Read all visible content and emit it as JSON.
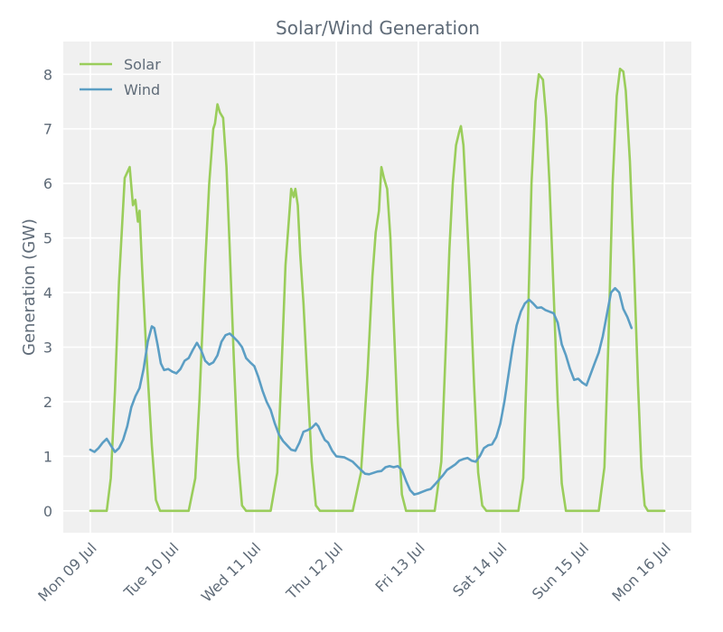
{
  "chart_data": {
    "type": "line",
    "title": "Solar/Wind Generation",
    "xlabel": "",
    "ylabel": "Generation (GW)",
    "ylim": [
      -0.4,
      8.6
    ],
    "yticks": [
      0,
      1,
      2,
      3,
      4,
      5,
      6,
      7,
      8
    ],
    "xlim": [
      -0.33,
      7.33
    ],
    "xticks": [
      0,
      1,
      2,
      3,
      4,
      5,
      6,
      7
    ],
    "xtick_labels": [
      "Mon 09 Jul",
      "Tue 10 Jul",
      "Wed 11 Jul",
      "Thu 12 Jul",
      "Fri 13 Jul",
      "Sat 14 Jul",
      "Sun 15 Jul",
      "Mon 16 Jul"
    ],
    "grid": true,
    "legend": "top-left",
    "x_units": "days since Mon 09 Jul 00:00",
    "series": [
      {
        "name": "Solar",
        "color": "#9acd5b",
        "points": [
          [
            0.0,
            0
          ],
          [
            0.1,
            0
          ],
          [
            0.2,
            0
          ],
          [
            0.25,
            0.6
          ],
          [
            0.3,
            2.2
          ],
          [
            0.35,
            4.2
          ],
          [
            0.42,
            6.1
          ],
          [
            0.48,
            6.3
          ],
          [
            0.52,
            5.6
          ],
          [
            0.55,
            5.7
          ],
          [
            0.58,
            5.3
          ],
          [
            0.6,
            5.5
          ],
          [
            0.63,
            4.5
          ],
          [
            0.68,
            3.0
          ],
          [
            0.75,
            1.2
          ],
          [
            0.8,
            0.2
          ],
          [
            0.85,
            0
          ],
          [
            1.0,
            0
          ],
          [
            1.2,
            0
          ],
          [
            1.28,
            0.6
          ],
          [
            1.33,
            2.0
          ],
          [
            1.4,
            4.5
          ],
          [
            1.45,
            6.0
          ],
          [
            1.5,
            7.0
          ],
          [
            1.52,
            7.1
          ],
          [
            1.55,
            7.45
          ],
          [
            1.58,
            7.3
          ],
          [
            1.62,
            7.2
          ],
          [
            1.66,
            6.3
          ],
          [
            1.7,
            4.8
          ],
          [
            1.75,
            2.8
          ],
          [
            1.8,
            1.0
          ],
          [
            1.85,
            0.1
          ],
          [
            1.9,
            0
          ],
          [
            2.0,
            0
          ],
          [
            2.2,
            0
          ],
          [
            2.28,
            0.7
          ],
          [
            2.33,
            2.5
          ],
          [
            2.38,
            4.5
          ],
          [
            2.42,
            5.3
          ],
          [
            2.45,
            5.9
          ],
          [
            2.48,
            5.75
          ],
          [
            2.5,
            5.9
          ],
          [
            2.53,
            5.6
          ],
          [
            2.56,
            4.7
          ],
          [
            2.6,
            3.8
          ],
          [
            2.65,
            2.3
          ],
          [
            2.7,
            0.9
          ],
          [
            2.75,
            0.1
          ],
          [
            2.8,
            0
          ],
          [
            3.0,
            0
          ],
          [
            3.2,
            0
          ],
          [
            3.3,
            0.7
          ],
          [
            3.38,
            2.5
          ],
          [
            3.44,
            4.3
          ],
          [
            3.48,
            5.1
          ],
          [
            3.52,
            5.5
          ],
          [
            3.55,
            6.3
          ],
          [
            3.58,
            6.1
          ],
          [
            3.62,
            5.9
          ],
          [
            3.66,
            5.0
          ],
          [
            3.7,
            3.5
          ],
          [
            3.75,
            1.6
          ],
          [
            3.8,
            0.3
          ],
          [
            3.85,
            0
          ],
          [
            4.0,
            0
          ],
          [
            4.2,
            0
          ],
          [
            4.28,
            0.9
          ],
          [
            4.33,
            2.8
          ],
          [
            4.38,
            4.8
          ],
          [
            4.42,
            6.0
          ],
          [
            4.46,
            6.7
          ],
          [
            4.5,
            6.95
          ],
          [
            4.52,
            7.05
          ],
          [
            4.55,
            6.7
          ],
          [
            4.58,
            5.8
          ],
          [
            4.63,
            4.2
          ],
          [
            4.68,
            2.3
          ],
          [
            4.73,
            0.7
          ],
          [
            4.78,
            0.1
          ],
          [
            4.83,
            0
          ],
          [
            5.0,
            0
          ],
          [
            5.22,
            0
          ],
          [
            5.28,
            0.6
          ],
          [
            5.33,
            3.0
          ],
          [
            5.38,
            6.0
          ],
          [
            5.43,
            7.5
          ],
          [
            5.47,
            8.0
          ],
          [
            5.52,
            7.9
          ],
          [
            5.56,
            7.2
          ],
          [
            5.6,
            6.0
          ],
          [
            5.65,
            4.0
          ],
          [
            5.7,
            2.0
          ],
          [
            5.75,
            0.5
          ],
          [
            5.8,
            0
          ],
          [
            6.0,
            0
          ],
          [
            6.2,
            0
          ],
          [
            6.27,
            0.8
          ],
          [
            6.32,
            3.2
          ],
          [
            6.37,
            6.0
          ],
          [
            6.42,
            7.6
          ],
          [
            6.46,
            8.1
          ],
          [
            6.5,
            8.05
          ],
          [
            6.53,
            7.7
          ],
          [
            6.58,
            6.4
          ],
          [
            6.63,
            4.5
          ],
          [
            6.68,
            2.3
          ],
          [
            6.72,
            0.8
          ],
          [
            6.76,
            0.1
          ],
          [
            6.8,
            0
          ],
          [
            7.0,
            0
          ]
        ]
      },
      {
        "name": "Wind",
        "color": "#5b9ec4",
        "points": [
          [
            0.0,
            1.12
          ],
          [
            0.05,
            1.08
          ],
          [
            0.1,
            1.15
          ],
          [
            0.15,
            1.25
          ],
          [
            0.2,
            1.32
          ],
          [
            0.25,
            1.2
          ],
          [
            0.3,
            1.08
          ],
          [
            0.35,
            1.15
          ],
          [
            0.4,
            1.3
          ],
          [
            0.45,
            1.55
          ],
          [
            0.5,
            1.9
          ],
          [
            0.55,
            2.1
          ],
          [
            0.6,
            2.25
          ],
          [
            0.65,
            2.6
          ],
          [
            0.7,
            3.1
          ],
          [
            0.75,
            3.38
          ],
          [
            0.78,
            3.35
          ],
          [
            0.82,
            3.05
          ],
          [
            0.86,
            2.7
          ],
          [
            0.9,
            2.58
          ],
          [
            0.95,
            2.6
          ],
          [
            1.0,
            2.55
          ],
          [
            1.05,
            2.52
          ],
          [
            1.1,
            2.6
          ],
          [
            1.15,
            2.75
          ],
          [
            1.2,
            2.8
          ],
          [
            1.25,
            2.95
          ],
          [
            1.3,
            3.08
          ],
          [
            1.35,
            2.95
          ],
          [
            1.4,
            2.75
          ],
          [
            1.45,
            2.68
          ],
          [
            1.5,
            2.72
          ],
          [
            1.55,
            2.85
          ],
          [
            1.6,
            3.1
          ],
          [
            1.65,
            3.22
          ],
          [
            1.7,
            3.25
          ],
          [
            1.75,
            3.18
          ],
          [
            1.8,
            3.1
          ],
          [
            1.85,
            3.0
          ],
          [
            1.9,
            2.8
          ],
          [
            1.95,
            2.72
          ],
          [
            2.0,
            2.65
          ],
          [
            2.05,
            2.45
          ],
          [
            2.1,
            2.2
          ],
          [
            2.15,
            2.0
          ],
          [
            2.2,
            1.85
          ],
          [
            2.25,
            1.6
          ],
          [
            2.3,
            1.4
          ],
          [
            2.35,
            1.28
          ],
          [
            2.4,
            1.2
          ],
          [
            2.45,
            1.12
          ],
          [
            2.5,
            1.1
          ],
          [
            2.55,
            1.25
          ],
          [
            2.6,
            1.45
          ],
          [
            2.65,
            1.48
          ],
          [
            2.7,
            1.52
          ],
          [
            2.75,
            1.6
          ],
          [
            2.78,
            1.55
          ],
          [
            2.82,
            1.42
          ],
          [
            2.86,
            1.3
          ],
          [
            2.9,
            1.25
          ],
          [
            2.95,
            1.1
          ],
          [
            3.0,
            1.0
          ],
          [
            3.1,
            0.98
          ],
          [
            3.2,
            0.9
          ],
          [
            3.3,
            0.75
          ],
          [
            3.35,
            0.68
          ],
          [
            3.4,
            0.67
          ],
          [
            3.5,
            0.72
          ],
          [
            3.55,
            0.73
          ],
          [
            3.6,
            0.8
          ],
          [
            3.65,
            0.82
          ],
          [
            3.7,
            0.8
          ],
          [
            3.75,
            0.82
          ],
          [
            3.8,
            0.75
          ],
          [
            3.85,
            0.55
          ],
          [
            3.9,
            0.38
          ],
          [
            3.95,
            0.3
          ],
          [
            4.0,
            0.32
          ],
          [
            4.05,
            0.35
          ],
          [
            4.1,
            0.38
          ],
          [
            4.15,
            0.4
          ],
          [
            4.2,
            0.48
          ],
          [
            4.3,
            0.65
          ],
          [
            4.35,
            0.75
          ],
          [
            4.4,
            0.8
          ],
          [
            4.45,
            0.85
          ],
          [
            4.5,
            0.92
          ],
          [
            4.55,
            0.95
          ],
          [
            4.6,
            0.97
          ],
          [
            4.65,
            0.92
          ],
          [
            4.7,
            0.9
          ],
          [
            4.75,
            1.0
          ],
          [
            4.8,
            1.15
          ],
          [
            4.85,
            1.2
          ],
          [
            4.9,
            1.22
          ],
          [
            4.95,
            1.35
          ],
          [
            5.0,
            1.6
          ],
          [
            5.05,
            2.0
          ],
          [
            5.1,
            2.5
          ],
          [
            5.15,
            3.0
          ],
          [
            5.2,
            3.4
          ],
          [
            5.25,
            3.65
          ],
          [
            5.3,
            3.8
          ],
          [
            5.35,
            3.87
          ],
          [
            5.4,
            3.8
          ],
          [
            5.45,
            3.72
          ],
          [
            5.5,
            3.73
          ],
          [
            5.55,
            3.68
          ],
          [
            5.6,
            3.65
          ],
          [
            5.65,
            3.62
          ],
          [
            5.7,
            3.45
          ],
          [
            5.75,
            3.05
          ],
          [
            5.8,
            2.85
          ],
          [
            5.85,
            2.6
          ],
          [
            5.9,
            2.4
          ],
          [
            5.95,
            2.42
          ],
          [
            6.0,
            2.35
          ],
          [
            6.05,
            2.3
          ],
          [
            6.1,
            2.5
          ],
          [
            6.15,
            2.7
          ],
          [
            6.2,
            2.9
          ],
          [
            6.25,
            3.2
          ],
          [
            6.3,
            3.6
          ],
          [
            6.35,
            4.0
          ],
          [
            6.4,
            4.08
          ],
          [
            6.45,
            4.0
          ],
          [
            6.5,
            3.7
          ],
          [
            6.55,
            3.55
          ],
          [
            6.6,
            3.35
          ]
        ]
      }
    ]
  }
}
